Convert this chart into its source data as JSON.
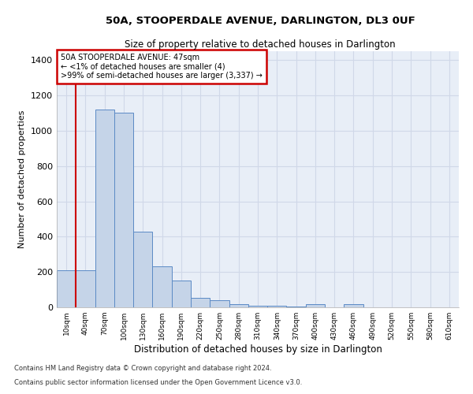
{
  "title": "50A, STOOPERDALE AVENUE, DARLINGTON, DL3 0UF",
  "subtitle": "Size of property relative to detached houses in Darlington",
  "xlabel": "Distribution of detached houses by size in Darlington",
  "ylabel": "Number of detached properties",
  "bar_color": "#c5d4e8",
  "bar_edge_color": "#5b8ac5",
  "background_color": "#e8eef7",
  "grid_color": "#d0d8e8",
  "categories": [
    "10sqm",
    "40sqm",
    "70sqm",
    "100sqm",
    "130sqm",
    "160sqm",
    "190sqm",
    "220sqm",
    "250sqm",
    "280sqm",
    "310sqm",
    "340sqm",
    "370sqm",
    "400sqm",
    "430sqm",
    "460sqm",
    "490sqm",
    "520sqm",
    "550sqm",
    "580sqm",
    "610sqm"
  ],
  "values": [
    210,
    210,
    1120,
    1100,
    430,
    230,
    150,
    55,
    40,
    20,
    10,
    10,
    5,
    20,
    0,
    20,
    0,
    0,
    0,
    0,
    0
  ],
  "ylim": [
    0,
    1450
  ],
  "yticks": [
    0,
    200,
    400,
    600,
    800,
    1000,
    1200,
    1400
  ],
  "annotation_line1": "50A STOOPERDALE AVENUE: 47sqm",
  "annotation_line2": "← <1% of detached houses are smaller (4)",
  "annotation_line3": ">99% of semi-detached houses are larger (3,337) →",
  "annotation_box_color": "#ffffff",
  "annotation_border_color": "#cc0000",
  "red_line_bar_index": 1,
  "footnote1": "Contains HM Land Registry data © Crown copyright and database right 2024.",
  "footnote2": "Contains public sector information licensed under the Open Government Licence v3.0."
}
